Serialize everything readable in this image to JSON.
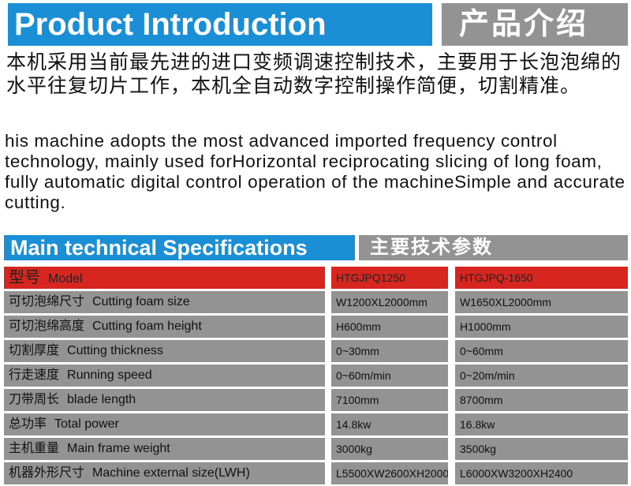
{
  "header": {
    "title_en": "Product Introduction",
    "title_zh": "产品介绍"
  },
  "intro": {
    "zh": "本机采用当前最先进的进口变频调速控制技术，主要用于长泡泡绵的水平往复切片工作，本机全自动数字控制操作简便，切割精准。",
    "en": "his machine adopts the most advanced imported frequency control technology, mainly used forHorizontal reciprocating slicing of long foam, fully automatic digital control operation of the machineSimple and accurate cutting."
  },
  "specs": {
    "title_en": "Main technical Specifications",
    "title_zh": "主要技术参数",
    "rows": [
      {
        "zh": "型号",
        "en": "Model",
        "v1": "HTGJPQ1250",
        "v2": "HTGJPQ-1650"
      },
      {
        "zh": "可切泡绵尺寸",
        "en": "Cutting foam size",
        "v1": "W1200XL2000mm",
        "v2": "W1650XL2000mm"
      },
      {
        "zh": "可切泡绵高度",
        "en": "Cutting foam height",
        "v1": "H600mm",
        "v2": "H1000mm"
      },
      {
        "zh": "切割厚度",
        "en": "Cutting thickness",
        "v1": "0~30mm",
        "v2": "0~60mm"
      },
      {
        "zh": "行走速度",
        "en": "Running speed",
        "v1": "0~60m/min",
        "v2": "0~20m/min"
      },
      {
        "zh": "刀带周长",
        "en": "blade length",
        "v1": "7100mm",
        "v2": "8700mm"
      },
      {
        "zh": "总功率",
        "en": "Total power",
        "v1": "14.8kw",
        "v2": "16.8kw"
      },
      {
        "zh": "主机重量",
        "en": "Main frame weight",
        "v1": "3000kg",
        "v2": "3500kg"
      },
      {
        "zh": "机器外形尺寸",
        "en": "Machine external size(LWH)",
        "v1": "L5500XW2600XH2000",
        "v2": "L6000XW3200XH2400"
      }
    ]
  },
  "colors": {
    "blue": "#1a8fd6",
    "gray": "#939393",
    "red": "#d6261f"
  }
}
